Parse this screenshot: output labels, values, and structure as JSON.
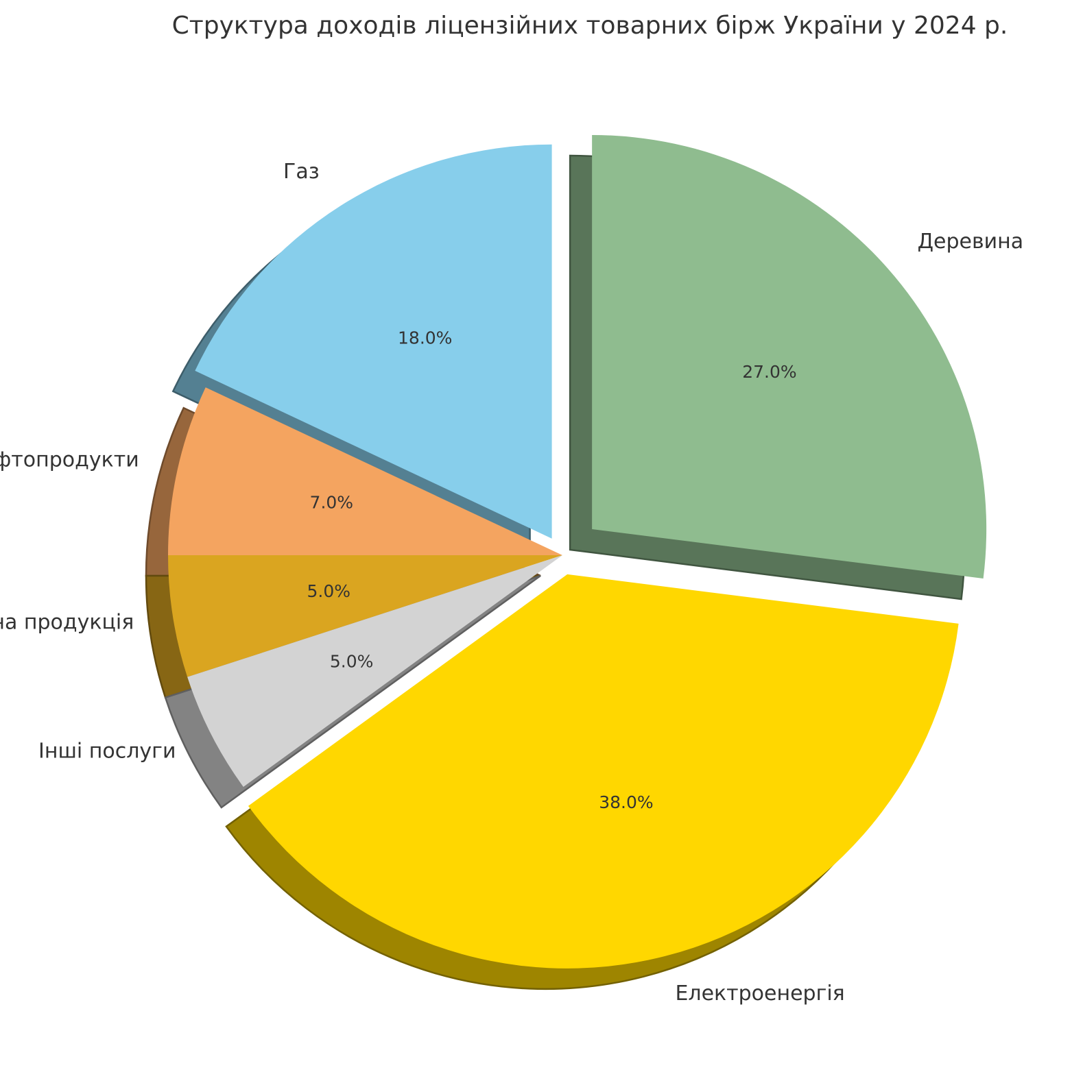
{
  "chart_data": {
    "type": "pie",
    "title": "Структура доходів ліцензійних товарних бірж України у 2024 р.",
    "slices": [
      {
        "label": "Деревина",
        "value": 27.0,
        "pct_label": "27.0%",
        "color": "#8fbc8f",
        "explode": 0.1
      },
      {
        "label": "Газ",
        "value": 18.0,
        "pct_label": "18.0%",
        "color": "#87ceeb",
        "explode": 0.05
      },
      {
        "label": "Нафтопродукти",
        "value": 7.0,
        "pct_label": "7.0%",
        "color": "#f4a460",
        "explode": 0
      },
      {
        "label": "Аграрна продукція",
        "value": 5.0,
        "pct_label": "5.0%",
        "color": "#daa520",
        "explode": 0
      },
      {
        "label": "Інші послуги",
        "value": 5.0,
        "pct_label": "5.0%",
        "color": "#d3d3d3",
        "explode": 0
      },
      {
        "label": "Електроенергія",
        "value": 38.0,
        "pct_label": "38.0%",
        "color": "#ffd700",
        "explode": 0.05
      }
    ],
    "start_angle_deg": -7.2,
    "direction": "counterclockwise",
    "shadow": true,
    "legend": "none"
  }
}
